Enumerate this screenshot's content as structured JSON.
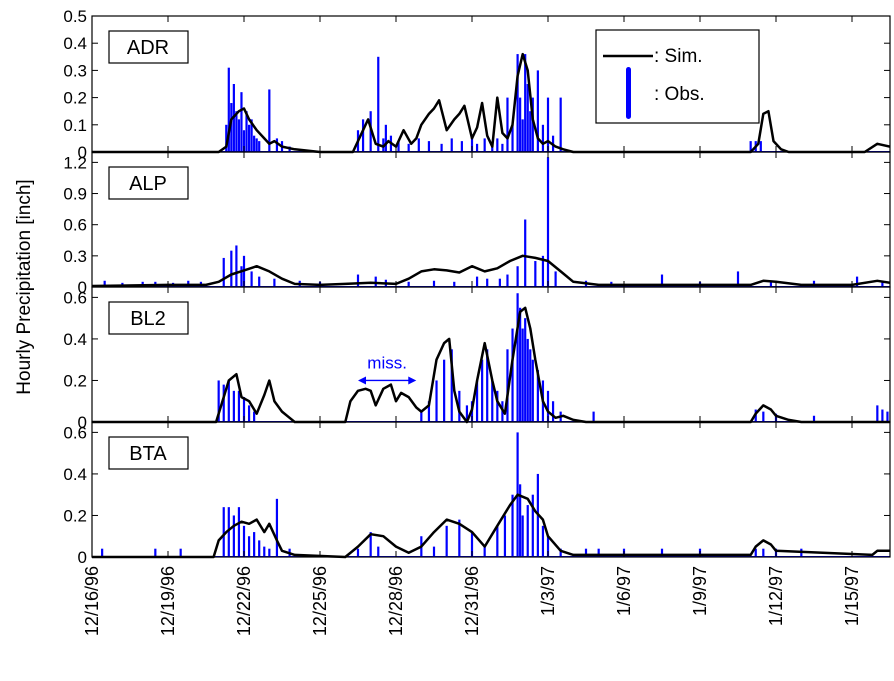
{
  "figure": {
    "ylabel": "Hourly Precipitation [inch]",
    "x_tick_labels": [
      "12/16/96",
      "12/19/96",
      "12/22/96",
      "12/25/96",
      "12/28/96",
      "12/31/96",
      "1/3/97",
      "1/6/97",
      "1/9/97",
      "1/12/97",
      "1/15/97"
    ],
    "legend": {
      "sim_label": ": Sim.",
      "obs_label": ": Obs.",
      "location": "top-right of first panel"
    },
    "colors": {
      "sim": "#000000",
      "obs": "#0000ff"
    }
  },
  "chart_data": [
    {
      "type": "bar",
      "panel": "ADR",
      "x_unit": "days since 12/16/96 00:00",
      "xlim": [
        0,
        31.5
      ],
      "ylim": [
        0,
        0.5
      ],
      "yticks": [
        0,
        0.1,
        0.2,
        0.3,
        0.4,
        0.5
      ],
      "ytick_labels": [
        "0",
        "0.1",
        "0.2",
        "0.3",
        "0.4",
        "0.5"
      ],
      "series": [
        {
          "name": "Sim.",
          "kind": "line",
          "x": [
            0,
            5,
            5.3,
            5.5,
            5.8,
            6,
            6.2,
            6.5,
            6.8,
            7,
            7.2,
            7.5,
            8,
            9,
            10.3,
            10.6,
            10.9,
            11.2,
            11.5,
            11.7,
            12,
            12.3,
            12.6,
            12.8,
            13,
            13.3,
            13.5,
            13.7,
            14,
            14.3,
            14.5,
            14.7,
            15,
            15.2,
            15.4,
            15.6,
            15.8,
            16,
            16.2,
            16.4,
            16.6,
            16.8,
            17,
            17.2,
            17.4,
            17.6,
            17.8,
            18,
            18.3,
            18.6,
            19,
            26,
            26.3,
            26.5,
            26.7,
            26.9,
            27.2,
            27.5,
            30.5,
            31,
            31.5
          ],
          "y": [
            0,
            0,
            0.02,
            0.12,
            0.15,
            0.16,
            0.12,
            0.08,
            0.05,
            0.03,
            0.04,
            0.02,
            0.01,
            0,
            0,
            0.06,
            0.12,
            0.03,
            0.02,
            0.04,
            0.02,
            0.08,
            0.03,
            0.05,
            0.1,
            0.14,
            0.16,
            0.19,
            0.08,
            0.12,
            0.14,
            0.17,
            0.05,
            0.09,
            0.18,
            0.06,
            0.02,
            0.2,
            0.07,
            0.05,
            0.1,
            0.28,
            0.36,
            0.3,
            0.12,
            0.05,
            0.03,
            0.04,
            0.02,
            0.01,
            0,
            0,
            0.03,
            0.14,
            0.15,
            0.04,
            0.01,
            0,
            0,
            0.03,
            0.02
          ]
        },
        {
          "name": "Obs.",
          "kind": "bars",
          "x": [
            5.3,
            5.4,
            5.5,
            5.6,
            5.7,
            5.8,
            5.9,
            6,
            6.1,
            6.2,
            6.3,
            6.4,
            6.5,
            6.6,
            7,
            7.3,
            7.5,
            7.8,
            10.5,
            10.7,
            11,
            11.3,
            11.5,
            11.6,
            11.8,
            12.1,
            12.5,
            12.9,
            13.3,
            13.8,
            14.2,
            14.6,
            15,
            15.2,
            15.5,
            15.8,
            16,
            16.2,
            16.4,
            16.6,
            16.8,
            16.9,
            17,
            17.1,
            17.2,
            17.3,
            17.4,
            17.6,
            17.8,
            18,
            18.2,
            18.5,
            26,
            26.2,
            26.4
          ],
          "y": [
            0.1,
            0.31,
            0.18,
            0.25,
            0.15,
            0.12,
            0.22,
            0.08,
            0.15,
            0.1,
            0.12,
            0.06,
            0.05,
            0.04,
            0.23,
            0.05,
            0.04,
            0.02,
            0.08,
            0.12,
            0.15,
            0.35,
            0.05,
            0.1,
            0.06,
            0.04,
            0.03,
            0.05,
            0.04,
            0.03,
            0.05,
            0.04,
            0.06,
            0.03,
            0.05,
            0.03,
            0.05,
            0.03,
            0.2,
            0.1,
            0.36,
            0.2,
            0.12,
            0.36,
            0.25,
            0.15,
            0.2,
            0.3,
            0.1,
            0.2,
            0.06,
            0.2,
            0.04,
            0.04,
            0.04
          ]
        }
      ]
    },
    {
      "type": "bar",
      "panel": "ALP",
      "xlim": [
        0,
        31.5
      ],
      "ylim": [
        0,
        1.3
      ],
      "yticks": [
        0,
        0.3,
        0.6,
        0.9,
        1.2
      ],
      "ytick_labels": [
        "0",
        "0.3",
        "0.6",
        "0.9",
        "1.2"
      ],
      "series": [
        {
          "name": "Sim.",
          "kind": "line",
          "x": [
            0,
            3,
            4.5,
            5,
            5.5,
            6,
            6.5,
            7,
            7.5,
            8,
            9,
            10,
            11,
            12,
            12.5,
            13,
            13.5,
            14,
            14.5,
            15,
            15.5,
            16,
            16.5,
            17,
            17.5,
            18,
            18.5,
            19,
            20,
            26,
            26.5,
            27,
            28,
            30,
            31,
            31.5
          ],
          "y": [
            0.01,
            0.02,
            0.02,
            0.05,
            0.12,
            0.16,
            0.2,
            0.15,
            0.08,
            0.03,
            0.02,
            0.03,
            0.04,
            0.03,
            0.08,
            0.15,
            0.17,
            0.16,
            0.14,
            0.2,
            0.15,
            0.18,
            0.25,
            0.3,
            0.28,
            0.25,
            0.15,
            0.05,
            0.02,
            0.02,
            0.06,
            0.05,
            0.02,
            0.02,
            0.06,
            0.04
          ]
        },
        {
          "name": "Obs.",
          "kind": "bars",
          "x": [
            0.5,
            1.2,
            2,
            2.5,
            3.2,
            3.8,
            4.3,
            5.2,
            5.5,
            5.7,
            5.9,
            6,
            6.3,
            6.6,
            7.2,
            8.2,
            9,
            10.5,
            11.2,
            11.6,
            12.5,
            13.5,
            14.3,
            15.2,
            15.6,
            16.1,
            16.4,
            16.8,
            17.1,
            17.5,
            17.8,
            18,
            18.3,
            19.5,
            20.5,
            22.5,
            24,
            25.5,
            26.8,
            28.5,
            30.2,
            31.2
          ],
          "y": [
            0.06,
            0.04,
            0.05,
            0.05,
            0.04,
            0.06,
            0.05,
            0.28,
            0.35,
            0.4,
            0.2,
            0.3,
            0.15,
            0.1,
            0.08,
            0.06,
            0.05,
            0.12,
            0.1,
            0.07,
            0.05,
            0.06,
            0.05,
            0.1,
            0.08,
            0.08,
            0.12,
            0.2,
            0.65,
            0.25,
            0.3,
            1.25,
            0.15,
            0.06,
            0.05,
            0.12,
            0.05,
            0.15,
            0.06,
            0.06,
            0.1,
            0.05
          ]
        }
      ]
    },
    {
      "type": "bar",
      "panel": "BL2",
      "xlim": [
        0,
        31.5
      ],
      "ylim": [
        0,
        0.65
      ],
      "yticks": [
        0,
        0.2,
        0.4,
        0.6
      ],
      "ytick_labels": [
        "0",
        "0.2",
        "0.4",
        "0.6"
      ],
      "annotation": {
        "text": "miss.",
        "x_start": 10.5,
        "x_end": 12.8,
        "y": 0.2
      },
      "series": [
        {
          "name": "Sim.",
          "kind": "line",
          "x": [
            0,
            4.9,
            5.1,
            5.4,
            5.7,
            5.9,
            6.2,
            6.5,
            6.8,
            7,
            7.2,
            7.5,
            7.8,
            8,
            8.5,
            9,
            10,
            10.2,
            10.5,
            10.8,
            11,
            11.2,
            11.5,
            11.8,
            12,
            12.2,
            12.5,
            12.8,
            13,
            13.3,
            13.6,
            13.9,
            14.1,
            14.3,
            14.5,
            14.8,
            15,
            15.2,
            15.5,
            15.8,
            16,
            16.3,
            16.6,
            16.9,
            17.1,
            17.3,
            17.5,
            17.8,
            18,
            18.3,
            18.6,
            19,
            19.5,
            26,
            26.2,
            26.5,
            26.8,
            27,
            27.5,
            28,
            31.5
          ],
          "y": [
            0,
            0,
            0.08,
            0.2,
            0.23,
            0.12,
            0.1,
            0.04,
            0.13,
            0.2,
            0.1,
            0.05,
            0.02,
            0,
            0,
            0,
            0,
            0.1,
            0.15,
            0.16,
            0.15,
            0.08,
            0.16,
            0.18,
            0.1,
            0.14,
            0.12,
            0.07,
            0.05,
            0.08,
            0.3,
            0.38,
            0.4,
            0.15,
            0.05,
            0,
            0.06,
            0.2,
            0.38,
            0.2,
            0.1,
            0.04,
            0.3,
            0.53,
            0.55,
            0.45,
            0.3,
            0.1,
            0.05,
            0.02,
            0.03,
            0.01,
            0,
            0,
            0.04,
            0.08,
            0.06,
            0.03,
            0.01,
            0,
            0
          ]
        },
        {
          "name": "Obs.",
          "kind": "bars",
          "x": [
            5,
            5.2,
            5.4,
            5.6,
            5.8,
            6,
            6.2,
            6.4,
            13,
            13.3,
            13.6,
            13.9,
            14.2,
            14.5,
            14.8,
            15,
            15.2,
            15.4,
            15.6,
            15.8,
            16,
            16.2,
            16.4,
            16.6,
            16.8,
            16.9,
            17,
            17.1,
            17.2,
            17.3,
            17.4,
            17.6,
            17.8,
            18,
            18.2,
            18.5,
            19.8,
            26.2,
            26.5,
            27,
            28.5,
            31,
            31.2,
            31.4
          ],
          "y": [
            0.2,
            0.18,
            0.2,
            0.15,
            0.15,
            0.12,
            0.08,
            0.05,
            0.05,
            0.1,
            0.2,
            0.3,
            0.35,
            0.15,
            0.08,
            0.1,
            0.2,
            0.3,
            0.35,
            0.2,
            0.15,
            0.1,
            0.35,
            0.45,
            0.62,
            0.55,
            0.45,
            0.5,
            0.4,
            0.35,
            0.3,
            0.25,
            0.2,
            0.15,
            0.1,
            0.05,
            0.05,
            0.06,
            0.05,
            0.04,
            0.03,
            0.08,
            0.06,
            0.05
          ]
        }
      ]
    },
    {
      "type": "bar",
      "panel": "BTA",
      "xlim": [
        0,
        31.5
      ],
      "ylim": [
        0,
        0.65
      ],
      "yticks": [
        0,
        0.2,
        0.4,
        0.6
      ],
      "ytick_labels": [
        "0",
        "0.2",
        "0.4",
        "0.6"
      ],
      "series": [
        {
          "name": "Sim.",
          "kind": "line",
          "x": [
            0,
            4.8,
            5,
            5.3,
            5.6,
            5.9,
            6.2,
            6.5,
            6.8,
            7,
            7.3,
            7.5,
            8,
            10,
            10.5,
            11,
            11.5,
            12,
            12.5,
            13,
            13.5,
            14,
            14.5,
            15,
            15.5,
            16,
            16.5,
            16.8,
            17.2,
            17.5,
            17.8,
            18,
            18.5,
            19,
            26,
            26.2,
            26.5,
            26.8,
            27,
            30.8,
            31,
            31.5
          ],
          "y": [
            0,
            0,
            0.08,
            0.12,
            0.15,
            0.17,
            0.16,
            0.18,
            0.12,
            0.16,
            0.08,
            0.03,
            0.01,
            0,
            0.05,
            0.11,
            0.1,
            0.05,
            0.02,
            0.05,
            0.12,
            0.18,
            0.16,
            0.12,
            0.05,
            0.15,
            0.25,
            0.3,
            0.28,
            0.22,
            0.18,
            0.1,
            0.03,
            0.01,
            0.01,
            0.05,
            0.08,
            0.06,
            0.03,
            0.01,
            0.03,
            0.03
          ]
        },
        {
          "name": "Obs.",
          "kind": "bars",
          "x": [
            0.4,
            2.5,
            3.5,
            5.2,
            5.4,
            5.6,
            5.8,
            6,
            6.2,
            6.4,
            6.6,
            6.8,
            7,
            7.3,
            7.8,
            10.5,
            11,
            11.3,
            13,
            13.5,
            14,
            14.5,
            15,
            15.5,
            16,
            16.3,
            16.6,
            16.8,
            16.9,
            17,
            17.2,
            17.4,
            17.6,
            17.8,
            18,
            18.5,
            19.5,
            20,
            21,
            22.5,
            24,
            26.2,
            26.5,
            27,
            28
          ],
          "y": [
            0.04,
            0.04,
            0.04,
            0.24,
            0.24,
            0.2,
            0.24,
            0.15,
            0.1,
            0.12,
            0.08,
            0.05,
            0.04,
            0.28,
            0.04,
            0.04,
            0.12,
            0.05,
            0.1,
            0.05,
            0.15,
            0.18,
            0.12,
            0.05,
            0.15,
            0.2,
            0.3,
            0.6,
            0.35,
            0.2,
            0.25,
            0.3,
            0.4,
            0.15,
            0.1,
            0.04,
            0.04,
            0.04,
            0.04,
            0.04,
            0.04,
            0.04,
            0.04,
            0.04,
            0.04
          ]
        }
      ]
    }
  ]
}
